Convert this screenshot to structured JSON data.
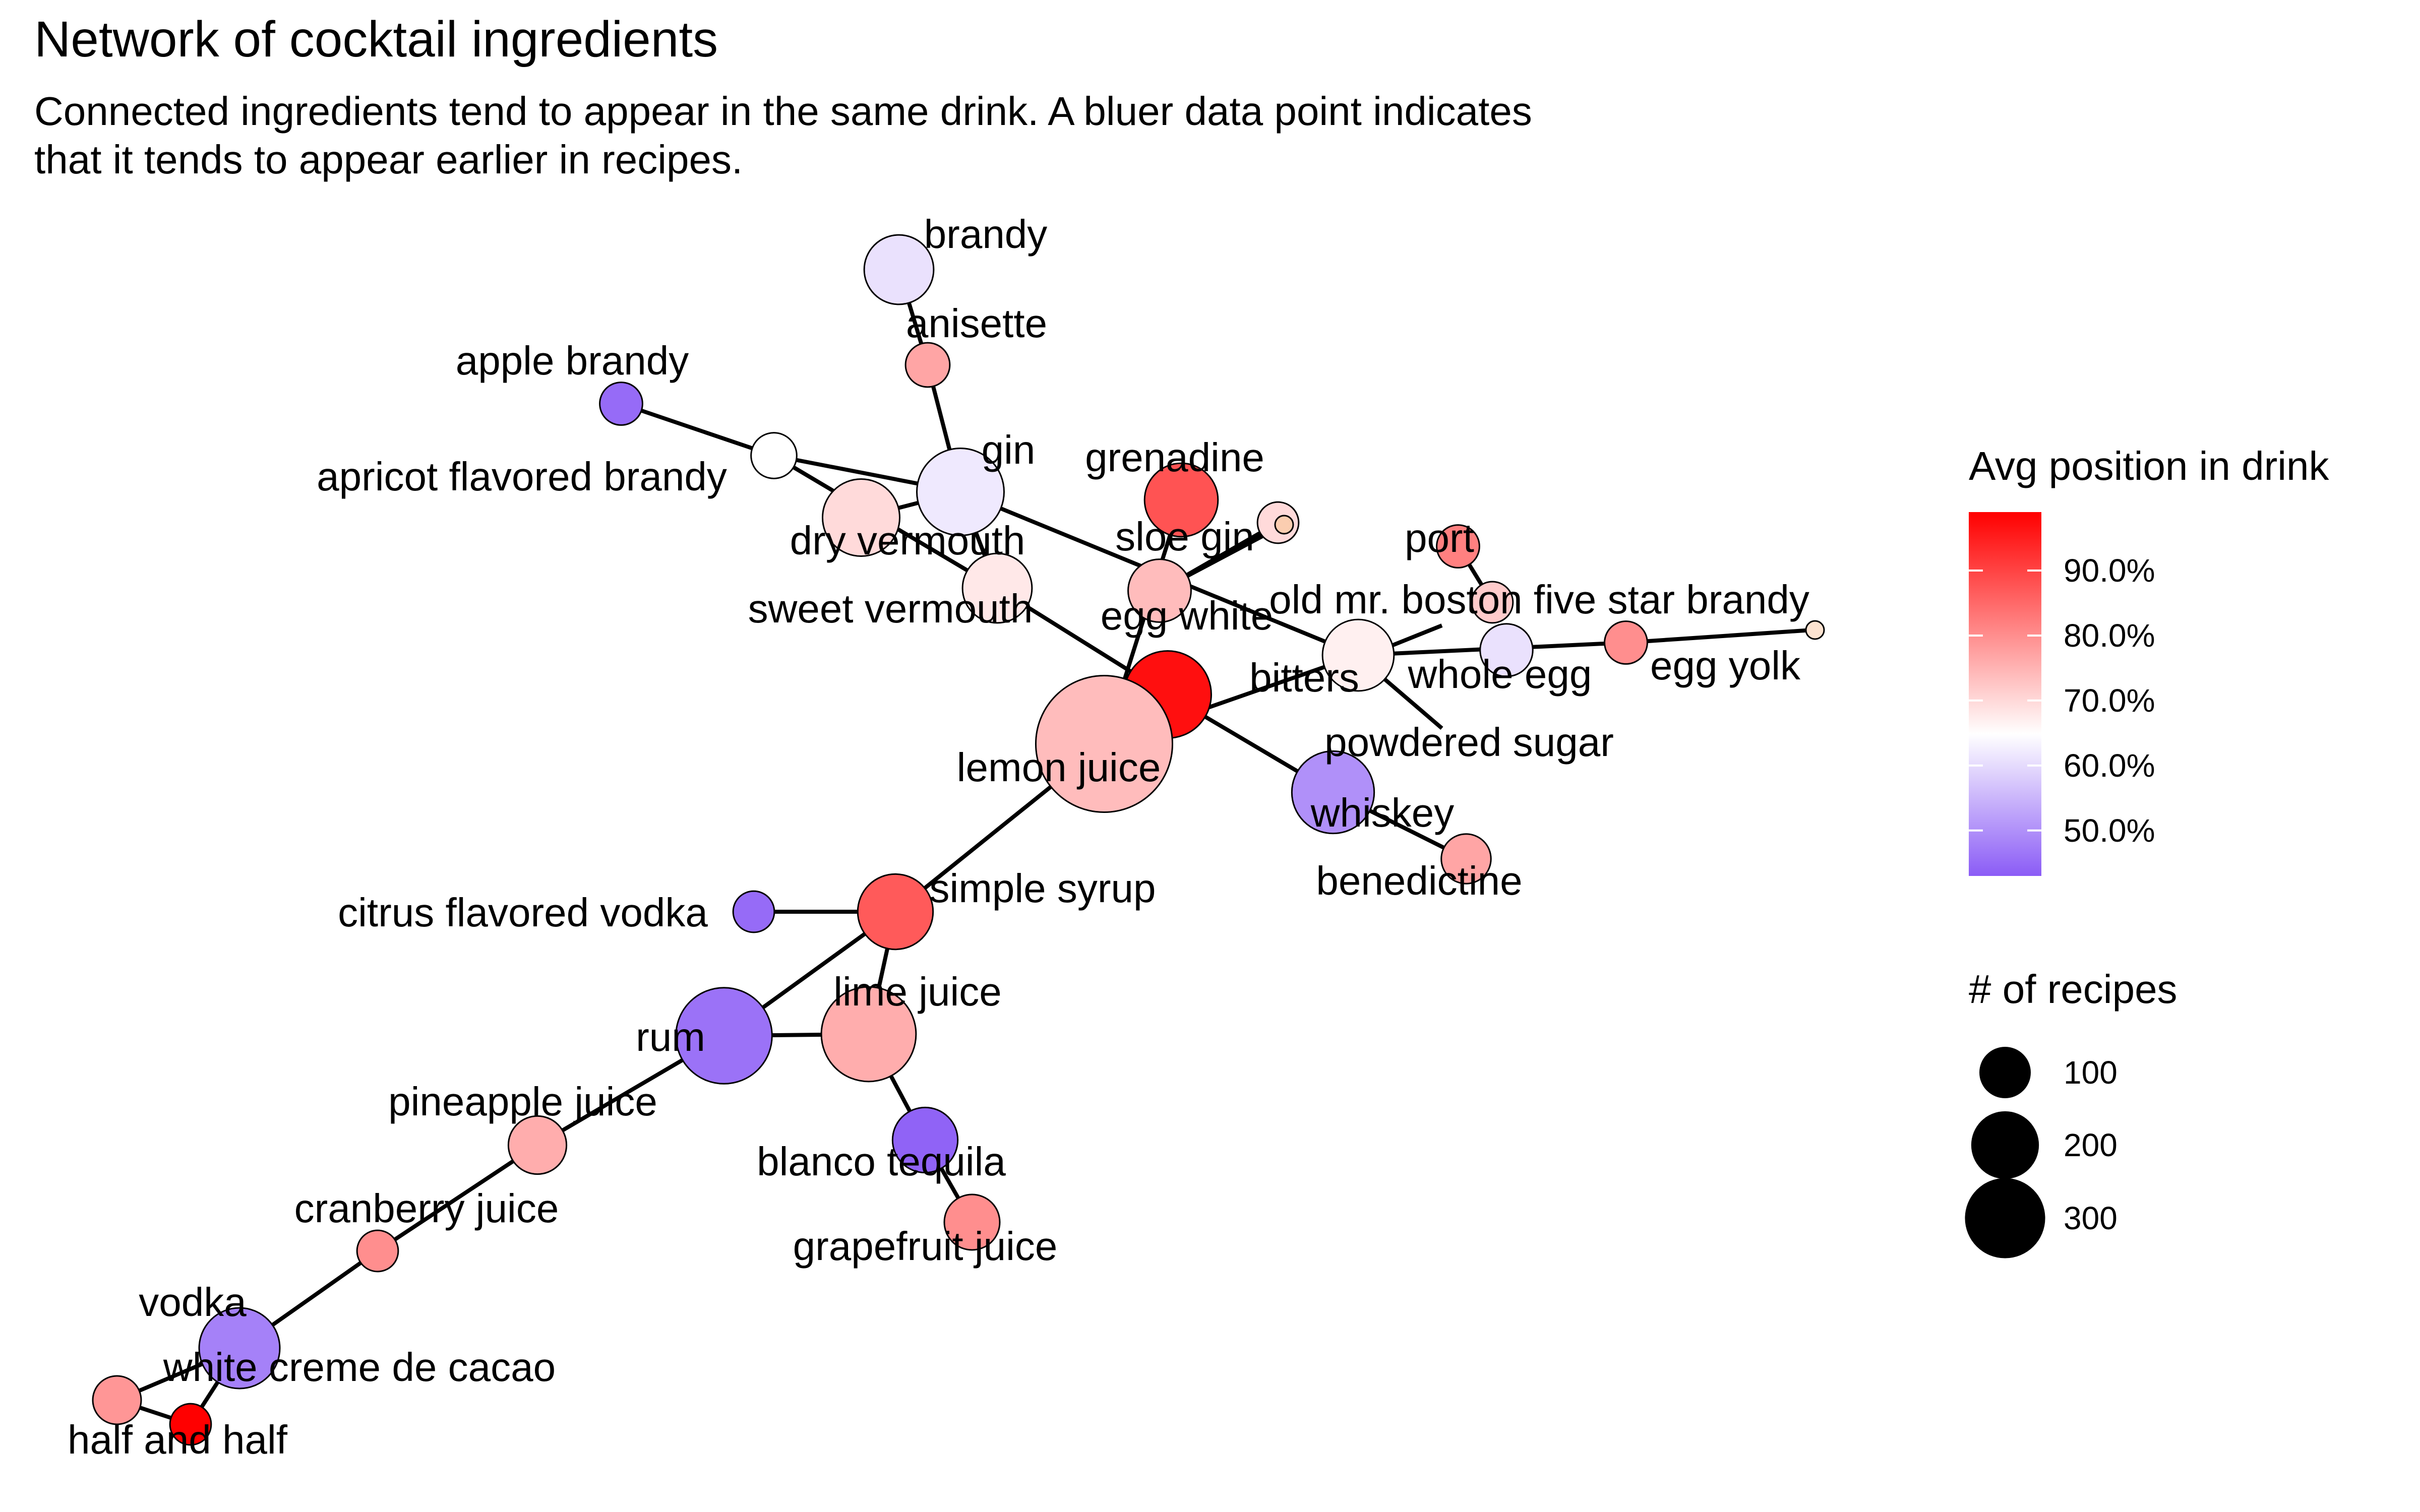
{
  "chart_data": {
    "type": "network",
    "title": "Network of cocktail ingredients",
    "subtitle_lines": [
      "Connected ingredients tend to appear in the same drink. A bluer data point indicates",
      "that it tends to appear earlier in recipes."
    ],
    "legend": {
      "placement": "right",
      "color_title": "Avg position in drink",
      "color_scale": {
        "low_color": "#8B5CF6",
        "mid_color": "#FFFFFF",
        "high_color": "#FF0000",
        "min": 0.43,
        "mid": 0.65,
        "max": 0.99
      },
      "color_ticks": [
        {
          "value": 0.9,
          "label": "90.0%"
        },
        {
          "value": 0.8,
          "label": "80.0%"
        },
        {
          "value": 0.7,
          "label": "70.0%"
        },
        {
          "value": 0.6,
          "label": "60.0%"
        },
        {
          "value": 0.5,
          "label": "50.0%"
        }
      ],
      "size_title": "# of recipes",
      "size_entries": [
        {
          "value": 100,
          "label": "100"
        },
        {
          "value": 200,
          "label": "200"
        },
        {
          "value": 300,
          "label": "300"
        }
      ]
    },
    "nodes": [
      {
        "id": "brandy",
        "label": "brandy",
        "avg_position": 0.61,
        "recipes": 70
      },
      {
        "id": "anisette",
        "label": "anisette",
        "avg_position": 0.77,
        "recipes": 22
      },
      {
        "id": "apple_brandy",
        "label": "apple brandy",
        "avg_position": 0.45,
        "recipes": 20
      },
      {
        "id": "apricot",
        "label": "apricot flavored brandy",
        "avg_position": 0.65,
        "recipes": 24
      },
      {
        "id": "gin",
        "label": "gin",
        "avg_position": 0.62,
        "recipes": 120
      },
      {
        "id": "grenadine",
        "label": "grenadine",
        "avg_position": 0.88,
        "recipes": 80
      },
      {
        "id": "sloe_gin",
        "label": "sloe gin",
        "avg_position": 0.7,
        "recipes": 18
      },
      {
        "id": "dry_vermouth",
        "label": "dry vermouth",
        "avg_position": 0.7,
        "recipes": 90
      },
      {
        "id": "sweet_vermouth",
        "label": "sweet vermouth",
        "avg_position": 0.68,
        "recipes": 70
      },
      {
        "id": "egg_white",
        "label": "egg white",
        "avg_position": 0.74,
        "recipes": 55
      },
      {
        "id": "port",
        "label": "port",
        "avg_position": 0.82,
        "recipes": 20
      },
      {
        "id": "old_mr_boston",
        "label": "old mr. boston five star brandy",
        "avg_position": 0.72,
        "recipes": 18
      },
      {
        "id": "whole_egg",
        "label": "whole egg",
        "avg_position": 0.61,
        "recipes": 35
      },
      {
        "id": "egg_yolk",
        "label": "egg yolk",
        "avg_position": 0.8,
        "recipes": 20
      },
      {
        "id": "powdered_sugar",
        "label": "powdered sugar",
        "avg_position": 0.67,
        "recipes": 75
      },
      {
        "id": "bitters",
        "label": "bitters",
        "avg_position": 0.97,
        "recipes": 120
      },
      {
        "id": "lemon_juice",
        "label": "lemon juice",
        "avg_position": 0.74,
        "recipes": 330
      },
      {
        "id": "whiskey",
        "label": "whiskey",
        "avg_position": 0.5,
        "recipes": 105
      },
      {
        "id": "benedictine",
        "label": "benedictine",
        "avg_position": 0.77,
        "recipes": 30
      },
      {
        "id": "simple_syrup",
        "label": "simple syrup",
        "avg_position": 0.87,
        "recipes": 85
      },
      {
        "id": "citrus_vodka",
        "label": "citrus flavored vodka",
        "avg_position": 0.45,
        "recipes": 18
      },
      {
        "id": "rum",
        "label": "rum",
        "avg_position": 0.46,
        "recipes": 150
      },
      {
        "id": "lime_juice",
        "label": "lime juice",
        "avg_position": 0.76,
        "recipes": 145
      },
      {
        "id": "blanco_tequila",
        "label": "blanco tequila",
        "avg_position": 0.44,
        "recipes": 60
      },
      {
        "id": "grapefruit_juice",
        "label": "grapefruit juice",
        "avg_position": 0.8,
        "recipes": 40
      },
      {
        "id": "pineapple_juice",
        "label": "pineapple juice",
        "avg_position": 0.76,
        "recipes": 45
      },
      {
        "id": "cranberry_juice",
        "label": "cranberry juice",
        "avg_position": 0.8,
        "recipes": 18
      },
      {
        "id": "vodka",
        "label": "vodka",
        "avg_position": 0.48,
        "recipes": 100
      },
      {
        "id": "white_creme",
        "label": "white creme de cacao",
        "avg_position": 0.79,
        "recipes": 28
      },
      {
        "id": "half_and_half",
        "label": "half and half",
        "avg_position": 0.99,
        "recipes": 18
      }
    ],
    "edges": [
      [
        "brandy",
        "anisette"
      ],
      [
        "anisette",
        "gin"
      ],
      [
        "apple_brandy",
        "apricot"
      ],
      [
        "apricot",
        "gin"
      ],
      [
        "apricot",
        "sweet_vermouth"
      ],
      [
        "gin",
        "dry_vermouth"
      ],
      [
        "gin",
        "sweet_vermouth"
      ],
      [
        "gin",
        "powdered_sugar"
      ],
      [
        "sweet_vermouth",
        "bitters"
      ],
      [
        "grenadine",
        "lemon_juice"
      ],
      [
        "sloe_gin",
        "egg_white"
      ],
      [
        "port",
        "old_mr_boston"
      ],
      [
        "powdered_sugar",
        "egg_yolk"
      ],
      [
        "powdered_sugar",
        "lemon_juice"
      ],
      [
        "bitters",
        "whiskey"
      ],
      [
        "whiskey",
        "benedictine"
      ],
      [
        "lemon_juice",
        "simple_syrup"
      ],
      [
        "simple_syrup",
        "citrus_vodka"
      ],
      [
        "simple_syrup",
        "rum"
      ],
      [
        "simple_syrup",
        "lime_juice"
      ],
      [
        "rum",
        "lime_juice"
      ],
      [
        "lime_juice",
        "blanco_tequila"
      ],
      [
        "blanco_tequila",
        "grapefruit_juice"
      ],
      [
        "rum",
        "pineapple_juice"
      ],
      [
        "pineapple_juice",
        "cranberry_juice"
      ],
      [
        "cranberry_juice",
        "vodka"
      ],
      [
        "vodka",
        "white_creme"
      ],
      [
        "vodka",
        "half_and_half"
      ],
      [
        "white_creme",
        "half_and_half"
      ]
    ]
  }
}
